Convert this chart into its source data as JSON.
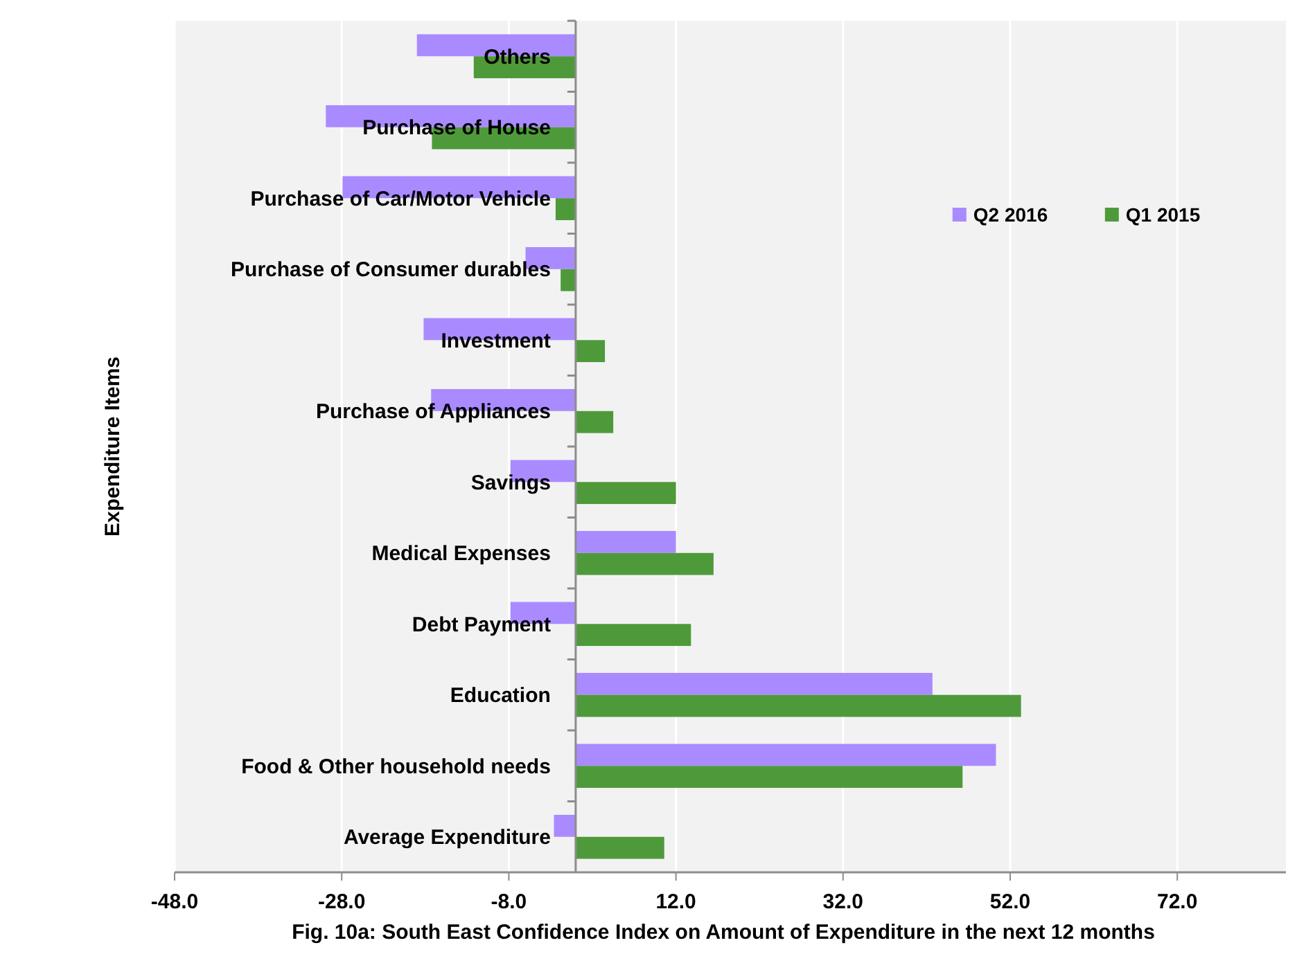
{
  "chart_data": {
    "type": "bar",
    "orientation": "horizontal",
    "ylabel": "Expenditure Items",
    "categories": [
      "Others",
      "Purchase of House",
      "Purchase of Car/Motor Vehicle",
      "Purchase of Consumer durables",
      "Investment",
      "Purchase of Appliances",
      "Savings",
      "Medical Expenses",
      "Debt Payment",
      "Education",
      "Food & Other household needs",
      "Average Expenditure"
    ],
    "series": [
      {
        "name": "Q2 2016",
        "color": "#a98bff",
        "values": [
          -19.0,
          -29.9,
          -27.9,
          -6.0,
          -18.2,
          -17.3,
          -7.8,
          12.0,
          -7.8,
          42.7,
          50.3,
          -2.6
        ]
      },
      {
        "name": "Q1 2015",
        "color": "#4e9a3a",
        "values": [
          -12.2,
          -17.2,
          -2.4,
          -1.8,
          3.5,
          4.5,
          12.0,
          16.5,
          13.8,
          53.3,
          46.3,
          10.6
        ]
      }
    ],
    "xlim": [
      -48,
      85
    ],
    "xticks": [
      {
        "value": -48,
        "label": "-48.0"
      },
      {
        "value": -28,
        "label": "-28.0"
      },
      {
        "value": -8,
        "label": "-8.0"
      },
      {
        "value": 12,
        "label": "12.0"
      },
      {
        "value": 32,
        "label": "32.0"
      },
      {
        "value": 52,
        "label": "52.0"
      },
      {
        "value": 72,
        "label": "72.0"
      }
    ],
    "grid": "x",
    "legend": "top right",
    "annotations": [
      "Fig. 10a: South East Confidence Index on  Amount of Expenditure in the next 12 months"
    ]
  }
}
